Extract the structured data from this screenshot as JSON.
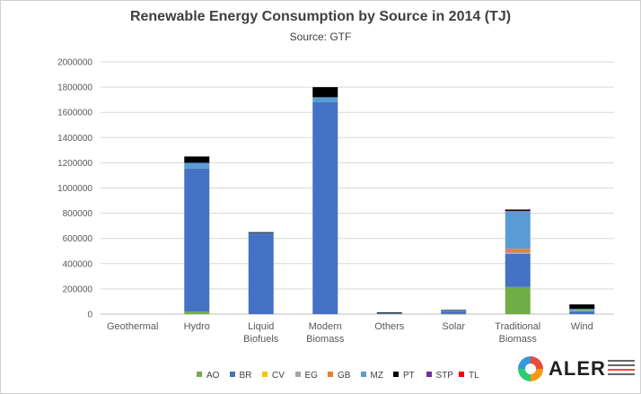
{
  "chart_data": {
    "type": "bar",
    "stacked": true,
    "title": "Renewable Energy Consumption by Source in 2014 (TJ)",
    "subtitle": "Source: GTF",
    "categories": [
      "Geothermal",
      "Hydro",
      "Liquid Biofuels",
      "Modern Biomass",
      "Others",
      "Solar",
      "Traditional Biomass",
      "Wind"
    ],
    "ylim": [
      0,
      2000000
    ],
    "yticks": [
      0,
      200000,
      400000,
      600000,
      800000,
      1000000,
      1200000,
      1400000,
      1600000,
      1800000,
      2000000
    ],
    "grid": true,
    "legend_position": "bottom",
    "series": [
      {
        "name": "AO",
        "color": "#70ad47",
        "values": [
          0,
          20000,
          0,
          0,
          0,
          2000,
          215000,
          0
        ]
      },
      {
        "name": "BR",
        "color": "#4472c4",
        "values": [
          0,
          1135000,
          640000,
          1680000,
          4000,
          22000,
          265000,
          25000
        ]
      },
      {
        "name": "CV",
        "color": "#ffc000",
        "values": [
          0,
          0,
          0,
          0,
          0,
          0,
          3000,
          2000
        ]
      },
      {
        "name": "EG",
        "color": "#a5a5a5",
        "values": [
          0,
          0,
          0,
          0,
          0,
          0,
          8000,
          0
        ]
      },
      {
        "name": "GB",
        "color": "#ed7d31",
        "values": [
          0,
          0,
          0,
          0,
          0,
          0,
          27000,
          0
        ]
      },
      {
        "name": "MZ",
        "color": "#5b9bd5",
        "values": [
          0,
          45000,
          4000,
          40000,
          2000,
          6000,
          300000,
          15000
        ]
      },
      {
        "name": "PT",
        "color": "#000000",
        "values": [
          0,
          50000,
          6000,
          80000,
          7000,
          3000,
          10000,
          35000
        ]
      },
      {
        "name": "STP",
        "color": "#7030a0",
        "values": [
          0,
          0,
          0,
          0,
          0,
          0,
          1000,
          0
        ]
      },
      {
        "name": "TL",
        "color": "#ff0000",
        "values": [
          0,
          0,
          0,
          0,
          0,
          0,
          2000,
          0
        ]
      }
    ]
  },
  "logo": {
    "text": "ALER"
  }
}
